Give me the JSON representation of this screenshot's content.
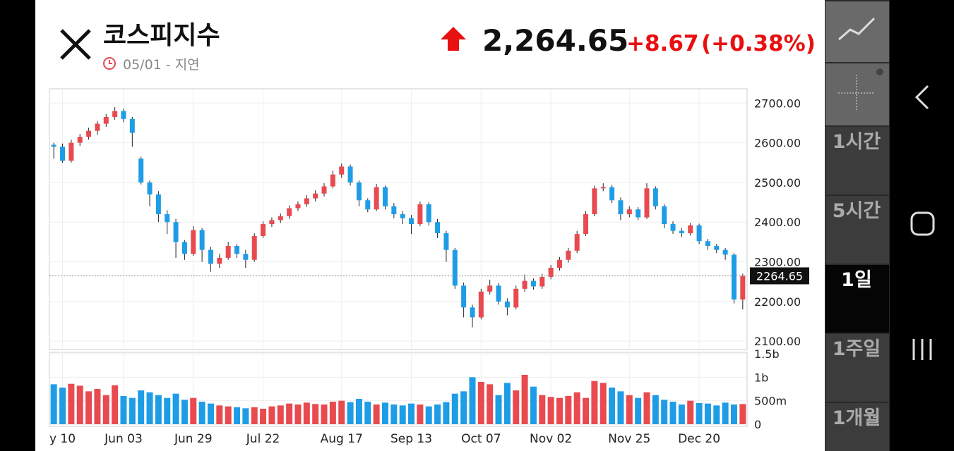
{
  "header": {
    "title": "코스피지수",
    "date": "05/01 - 지연",
    "price": "2,264.65",
    "change": "+8.67",
    "change_pct": "(+0.38%)"
  },
  "sidebar": {
    "periods": [
      "1시간",
      "5시간",
      "1일",
      "1주일",
      "1개월"
    ],
    "selected": 2
  },
  "chart_data": {
    "type": "candlestick",
    "categories": [
      null,
      "y 10",
      null,
      null,
      null,
      null,
      null,
      null,
      "Jun 03",
      null,
      null,
      null,
      null,
      null,
      null,
      null,
      "Jun 29",
      null,
      null,
      null,
      null,
      null,
      null,
      null,
      "Jul 22",
      null,
      null,
      null,
      null,
      null,
      null,
      null,
      null,
      "Aug 17",
      null,
      null,
      null,
      null,
      null,
      null,
      null,
      "Sep 13",
      null,
      null,
      null,
      null,
      null,
      null,
      null,
      "Oct 07",
      null,
      null,
      null,
      null,
      null,
      null,
      null,
      "Nov 02",
      null,
      null,
      null,
      null,
      null,
      null,
      null,
      null,
      "Nov 25",
      null,
      null,
      null,
      null,
      null,
      null,
      null,
      "Dec 20",
      null,
      null,
      null,
      null,
      null
    ],
    "open": [
      2595,
      2590,
      2555,
      2600,
      2615,
      2630,
      2648,
      2665,
      2680,
      2660,
      2560,
      2500,
      2470,
      2420,
      2400,
      2350,
      2320,
      2380,
      2330,
      2295,
      2310,
      2340,
      2320,
      2305,
      2365,
      2395,
      2405,
      2415,
      2435,
      2445,
      2460,
      2472,
      2490,
      2520,
      2540,
      2500,
      2455,
      2432,
      2488,
      2440,
      2420,
      2410,
      2395,
      2445,
      2400,
      2372,
      2330,
      2240,
      2185,
      2160,
      2225,
      2240,
      2200,
      2185,
      2232,
      2252,
      2238,
      2262,
      2285,
      2305,
      2328,
      2370,
      2420,
      2485,
      2488,
      2455,
      2420,
      2432,
      2412,
      2485,
      2440,
      2395,
      2378,
      2372,
      2392,
      2352,
      2340,
      2330,
      2318,
      2205
    ],
    "high": [
      2600,
      2598,
      2608,
      2622,
      2638,
      2655,
      2672,
      2690,
      2686,
      2665,
      2565,
      2505,
      2478,
      2430,
      2408,
      2355,
      2390,
      2385,
      2338,
      2320,
      2350,
      2345,
      2330,
      2372,
      2402,
      2412,
      2422,
      2442,
      2452,
      2468,
      2480,
      2498,
      2530,
      2548,
      2545,
      2505,
      2460,
      2496,
      2492,
      2448,
      2428,
      2418,
      2452,
      2450,
      2408,
      2378,
      2335,
      2248,
      2192,
      2232,
      2255,
      2246,
      2208,
      2240,
      2268,
      2258,
      2270,
      2292,
      2312,
      2335,
      2378,
      2428,
      2492,
      2498,
      2494,
      2462,
      2440,
      2438,
      2498,
      2490,
      2445,
      2402,
      2385,
      2398,
      2396,
      2358,
      2345,
      2335,
      2322,
      2270
    ],
    "low": [
      2560,
      2550,
      2550,
      2592,
      2608,
      2620,
      2640,
      2658,
      2652,
      2590,
      2495,
      2440,
      2400,
      2370,
      2310,
      2305,
      2315,
      2300,
      2275,
      2285,
      2305,
      2310,
      2285,
      2300,
      2360,
      2388,
      2398,
      2408,
      2428,
      2438,
      2452,
      2465,
      2485,
      2512,
      2492,
      2440,
      2425,
      2428,
      2432,
      2410,
      2395,
      2370,
      2390,
      2392,
      2360,
      2300,
      2232,
      2160,
      2135,
      2155,
      2218,
      2192,
      2165,
      2180,
      2225,
      2230,
      2232,
      2256,
      2278,
      2298,
      2322,
      2365,
      2415,
      2478,
      2448,
      2405,
      2412,
      2405,
      2408,
      2432,
      2385,
      2370,
      2362,
      2366,
      2345,
      2330,
      2322,
      2305,
      2195,
      2180
    ],
    "close": [
      2590,
      2555,
      2600,
      2615,
      2630,
      2648,
      2665,
      2680,
      2660,
      2625,
      2500,
      2470,
      2420,
      2400,
      2350,
      2320,
      2380,
      2330,
      2295,
      2310,
      2340,
      2320,
      2305,
      2365,
      2395,
      2405,
      2415,
      2435,
      2445,
      2460,
      2472,
      2490,
      2520,
      2540,
      2500,
      2455,
      2432,
      2488,
      2440,
      2420,
      2410,
      2395,
      2445,
      2400,
      2372,
      2330,
      2240,
      2185,
      2160,
      2225,
      2240,
      2200,
      2185,
      2232,
      2252,
      2238,
      2262,
      2285,
      2305,
      2328,
      2370,
      2420,
      2485,
      2488,
      2455,
      2420,
      2432,
      2412,
      2485,
      2440,
      2395,
      2378,
      2372,
      2392,
      2352,
      2340,
      2330,
      2318,
      2205,
      2264.65
    ],
    "volume": [
      850000000,
      780000000,
      860000000,
      820000000,
      700000000,
      750000000,
      620000000,
      830000000,
      600000000,
      560000000,
      720000000,
      680000000,
      620000000,
      560000000,
      650000000,
      520000000,
      560000000,
      480000000,
      440000000,
      400000000,
      380000000,
      360000000,
      340000000,
      360000000,
      330000000,
      380000000,
      400000000,
      440000000,
      420000000,
      460000000,
      430000000,
      420000000,
      480000000,
      500000000,
      470000000,
      540000000,
      480000000,
      420000000,
      460000000,
      420000000,
      400000000,
      440000000,
      420000000,
      380000000,
      420000000,
      470000000,
      650000000,
      700000000,
      1000000000,
      900000000,
      850000000,
      620000000,
      880000000,
      720000000,
      1050000000,
      800000000,
      620000000,
      580000000,
      560000000,
      600000000,
      680000000,
      560000000,
      920000000,
      880000000,
      780000000,
      700000000,
      620000000,
      560000000,
      680000000,
      620000000,
      520000000,
      480000000,
      420000000,
      500000000,
      450000000,
      440000000,
      400000000,
      460000000,
      420000000,
      430000000
    ],
    "up_color": "#e84a4f",
    "down_color": "#1e9de6",
    "ylim": [
      2079,
      2736
    ],
    "yticks": [
      {
        "value": 2100,
        "label": "2100.00"
      },
      {
        "value": 2200,
        "label": "2200.00"
      },
      {
        "value": 2300,
        "label": "2300.00"
      },
      {
        "value": 2400,
        "label": "2400.00"
      },
      {
        "value": 2500,
        "label": "2500.00"
      },
      {
        "value": 2600,
        "label": "2600.00"
      },
      {
        "value": 2700,
        "label": "2700.00"
      }
    ],
    "last_price_label": "2264.65",
    "volume_ylim": [
      -45000000,
      1530000000
    ],
    "volume_yticks": [
      0,
      {
        "value": 500000000,
        "label": "500m"
      },
      {
        "value": 1000000000,
        "label": "1b"
      },
      {
        "value": 1500000000,
        "label": "1.5b"
      }
    ],
    "grid": true
  }
}
